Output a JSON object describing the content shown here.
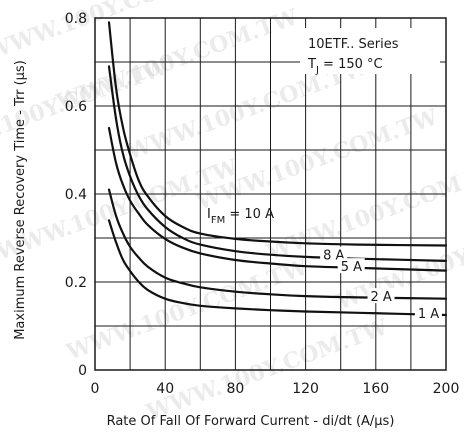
{
  "chart_data": {
    "type": "line",
    "xlabel": "Rate Of Fall Of Forward Current - di/dt (A/µs)",
    "ylabel": "Maximum Reverse Recovery Time - Trr (µs)",
    "xlim": [
      0,
      200
    ],
    "ylim": [
      0,
      0.8
    ],
    "x_ticks": [
      "0",
      "40",
      "80",
      "120",
      "160",
      "200"
    ],
    "y_ticks": [
      "0",
      "0.2",
      "0.4",
      "0.6",
      "0.8"
    ],
    "grid": true,
    "annotations": {
      "series_text": "10ETF.. Series",
      "tj_main": "T",
      "tj_sub": "J",
      "tj_value": " = 150 °C",
      "ifm_main": "I",
      "ifm_sub": "FM",
      "ifm_value": " = 10 A"
    },
    "series": [
      {
        "name": "10 A",
        "label": "",
        "x": [
          8,
          12,
          16,
          20,
          25,
          30,
          40,
          50,
          60,
          80,
          100,
          120,
          150,
          200
        ],
        "values": [
          0.79,
          0.64,
          0.55,
          0.49,
          0.43,
          0.395,
          0.35,
          0.325,
          0.31,
          0.298,
          0.292,
          0.288,
          0.285,
          0.283
        ]
      },
      {
        "name": "8 A",
        "label": "8 A",
        "x": [
          8,
          12,
          16,
          20,
          25,
          30,
          40,
          50,
          60,
          80,
          100,
          120,
          150,
          200
        ],
        "values": [
          0.69,
          0.57,
          0.49,
          0.44,
          0.395,
          0.365,
          0.325,
          0.3,
          0.285,
          0.27,
          0.262,
          0.257,
          0.253,
          0.248
        ]
      },
      {
        "name": "5 A",
        "label": "5 A",
        "x": [
          8,
          12,
          16,
          20,
          25,
          30,
          40,
          50,
          60,
          80,
          100,
          120,
          150,
          200
        ],
        "values": [
          0.55,
          0.47,
          0.42,
          0.385,
          0.355,
          0.33,
          0.298,
          0.278,
          0.265,
          0.25,
          0.242,
          0.236,
          0.232,
          0.226
        ]
      },
      {
        "name": "2 A",
        "label": "2 A",
        "x": [
          8,
          12,
          16,
          20,
          25,
          30,
          40,
          50,
          60,
          80,
          100,
          120,
          150,
          200
        ],
        "values": [
          0.41,
          0.35,
          0.31,
          0.28,
          0.255,
          0.235,
          0.21,
          0.197,
          0.188,
          0.178,
          0.172,
          0.168,
          0.165,
          0.162
        ]
      },
      {
        "name": "1 A",
        "label": "1 A",
        "x": [
          8,
          12,
          16,
          20,
          25,
          30,
          40,
          50,
          60,
          80,
          100,
          120,
          150,
          200
        ],
        "values": [
          0.34,
          0.29,
          0.25,
          0.225,
          0.2,
          0.182,
          0.162,
          0.152,
          0.146,
          0.14,
          0.136,
          0.133,
          0.13,
          0.125
        ]
      }
    ],
    "watermark": "WWW.100Y.COM.TW"
  }
}
